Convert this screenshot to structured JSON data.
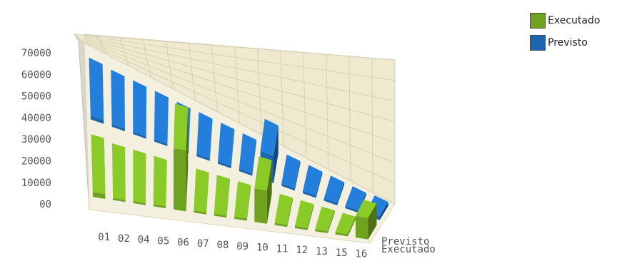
{
  "chart_data": {
    "type": "bar",
    "categories": [
      "01",
      "02",
      "04",
      "05",
      "06",
      "07",
      "08",
      "09",
      "10",
      "11",
      "12",
      "13",
      "15",
      "16"
    ],
    "series": [
      {
        "name": "Executado",
        "color": "#6fa21f",
        "values": [
          5000,
          1000,
          1000,
          1000,
          62000,
          1000,
          1000,
          1000,
          34000,
          1000,
          1000,
          1000,
          1000,
          22000
        ]
      },
      {
        "name": "Previsto",
        "color": "#1c65b0",
        "values": [
          4000,
          2500,
          2500,
          2500,
          2000,
          2500,
          2500,
          2500,
          28000,
          2500,
          2500,
          2500,
          2500,
          4000
        ]
      }
    ],
    "y_ticks": [
      "70000",
      "60000",
      "50000",
      "40000",
      "30000",
      "20000",
      "10000",
      "00"
    ],
    "ylim": [
      0,
      70000
    ],
    "depth_labels": [
      "Previsto",
      "Executado"
    ],
    "grid": true,
    "legend_position": "top-right"
  }
}
